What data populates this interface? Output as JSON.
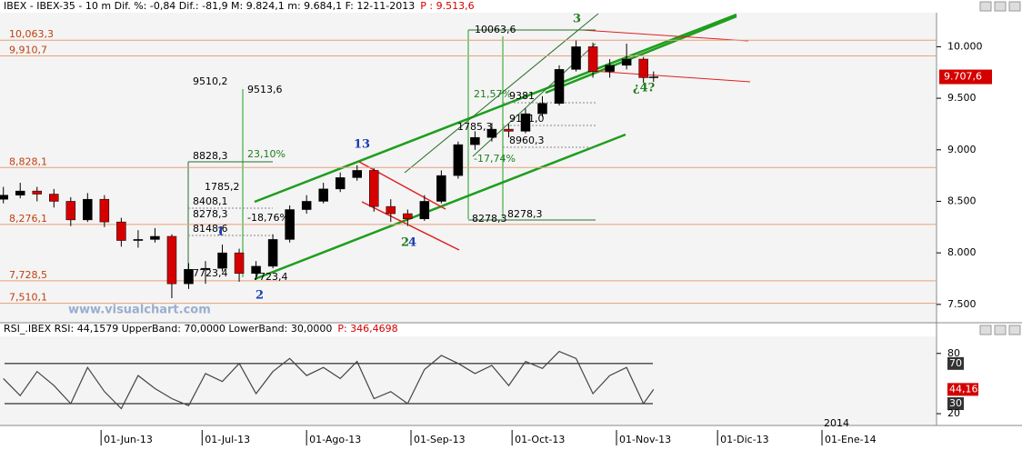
{
  "chart_data": [
    {
      "type": "candlestick",
      "title": "IBEX - IBEX-35 - 10 m Dif. %: -0,84 Dif.: -81,9 M: 9.824,1 m: 9.684,1 F: 12-11-2013",
      "title_extra": "P : 9.513,6",
      "x": [
        "2013-05-03",
        "2013-05-08",
        "2013-05-13",
        "2013-05-18",
        "2013-05-23",
        "2013-05-28",
        "2013-06-02",
        "2013-06-07",
        "2013-06-12",
        "2013-06-17",
        "2013-06-22",
        "2013-06-27",
        "2013-07-02",
        "2013-07-07",
        "2013-07-12",
        "2013-07-17",
        "2013-07-22",
        "2013-07-27",
        "2013-08-01",
        "2013-08-06",
        "2013-08-11",
        "2013-08-16",
        "2013-08-21",
        "2013-08-26",
        "2013-08-31",
        "2013-09-05",
        "2013-09-10",
        "2013-09-15",
        "2013-09-20",
        "2013-09-25",
        "2013-09-30",
        "2013-10-05",
        "2013-10-10",
        "2013-10-15",
        "2013-10-20",
        "2013-10-25",
        "2013-10-30",
        "2013-11-04",
        "2013-11-09",
        "2013-11-12"
      ],
      "open": [
        8520,
        8560,
        8600,
        8570,
        8500,
        8320,
        8520,
        8300,
        8120,
        8130,
        8160,
        7700,
        7840,
        7850,
        8000,
        7800,
        7870,
        8130,
        8420,
        8500,
        8620,
        8730,
        8800,
        8450,
        8380,
        8330,
        8500,
        8750,
        9050,
        9120,
        9200,
        9180,
        9350,
        9450,
        9780,
        10000,
        9760,
        9820,
        9880,
        9700
      ],
      "high": [
        8640,
        8680,
        8640,
        8620,
        8540,
        8580,
        8560,
        8340,
        8220,
        8240,
        8180,
        7900,
        7920,
        8080,
        8040,
        7920,
        8180,
        8460,
        8560,
        8680,
        8780,
        8850,
        8820,
        8520,
        8420,
        8560,
        8800,
        9080,
        9180,
        9260,
        9250,
        9400,
        9520,
        9820,
        10060,
        10040,
        9880,
        10030,
        9900,
        9760
      ],
      "low": [
        8480,
        8530,
        8500,
        8440,
        8260,
        8300,
        8250,
        8060,
        8050,
        8100,
        7560,
        7650,
        7700,
        7820,
        7720,
        7740,
        7850,
        8100,
        8380,
        8480,
        8590,
        8700,
        8400,
        8300,
        8260,
        8310,
        8480,
        8720,
        9000,
        9080,
        9120,
        9160,
        9320,
        9430,
        9760,
        9700,
        9700,
        9780,
        9650,
        9660
      ],
      "close": [
        8560,
        8600,
        8570,
        8500,
        8320,
        8520,
        8300,
        8120,
        8130,
        8160,
        7700,
        7840,
        7850,
        8000,
        7800,
        7870,
        8130,
        8420,
        8500,
        8620,
        8730,
        8800,
        8450,
        8380,
        8330,
        8500,
        8750,
        9050,
        9120,
        9200,
        9180,
        9350,
        9450,
        9780,
        10000,
        9760,
        9820,
        9880,
        9700,
        9708
      ],
      "up_color": "#000000",
      "down_color": "#d40000",
      "xlim": [
        "2013-05-02",
        "2014-02-04"
      ],
      "xticks": [
        {
          "value": "2013-06-01",
          "label": "01-Jun-13"
        },
        {
          "value": "2013-07-01",
          "label": "01-Jul-13"
        },
        {
          "value": "2013-08-01",
          "label": "01-Ago-13"
        },
        {
          "value": "2013-09-01",
          "label": "01-Sep-13"
        },
        {
          "value": "2013-10-01",
          "label": "01-Oct-13"
        },
        {
          "value": "2013-11-01",
          "label": "01-Nov-13"
        },
        {
          "value": "2013-12-01",
          "label": "01-Dic-13"
        },
        {
          "value": "2014-01-01",
          "label": "01-Ene-14"
        }
      ],
      "year_marker": "2014",
      "ylim": [
        7322,
        10330
      ],
      "yticks": [
        {
          "value": 7500,
          "label": "7.500"
        },
        {
          "value": 8000,
          "label": "8.000"
        },
        {
          "value": 8500,
          "label": "8.500"
        },
        {
          "value": 9000,
          "label": "9.000"
        },
        {
          "value": 9500,
          "label": "9.500"
        },
        {
          "value": 10000,
          "label": "10.000"
        }
      ],
      "levels": [
        {
          "value": 10063.3,
          "label": "10,063,3"
        },
        {
          "value": 9910.7,
          "label": "9,910,7"
        },
        {
          "value": 8828.1,
          "label": "8,828,1"
        },
        {
          "value": 8276.1,
          "label": "8,276,1"
        },
        {
          "value": 7728.5,
          "label": "7,728,5"
        },
        {
          "value": 7510.1,
          "label": "7,510,1"
        }
      ],
      "level_color": "#e8a07a",
      "last_price": {
        "value": 9707.6,
        "label": "9.707,6"
      },
      "annotations": [
        "10063,6",
        "9510,2",
        "9513,6",
        "8828,3",
        "23,10%",
        "1785,2",
        "8408,1",
        "8278,3",
        "-18,76%",
        "8148,6",
        "7723,4",
        "7723,4",
        "21,57%",
        "9381",
        "1785,3",
        "9171,0",
        "8960,3",
        "-17,74%",
        "8278,3",
        "8278,3",
        "3",
        "13",
        "1",
        "2",
        "2",
        "4",
        "¿4?",
        "www.visualchart.com"
      ]
    },
    {
      "type": "line",
      "title": "RSI_.IBEX RSI: 44,1579 UpperBand: 70,0000 LowerBand: 30,0000",
      "title_extra": "P: 346,4698",
      "x": [
        "2013-05-03",
        "2013-05-08",
        "2013-05-13",
        "2013-05-18",
        "2013-05-23",
        "2013-05-28",
        "2013-06-02",
        "2013-06-07",
        "2013-06-12",
        "2013-06-17",
        "2013-06-22",
        "2013-06-27",
        "2013-07-02",
        "2013-07-07",
        "2013-07-12",
        "2013-07-17",
        "2013-07-22",
        "2013-07-27",
        "2013-08-01",
        "2013-08-06",
        "2013-08-11",
        "2013-08-16",
        "2013-08-21",
        "2013-08-26",
        "2013-08-31",
        "2013-09-05",
        "2013-09-10",
        "2013-09-15",
        "2013-09-20",
        "2013-09-25",
        "2013-09-30",
        "2013-10-05",
        "2013-10-10",
        "2013-10-15",
        "2013-10-20",
        "2013-10-25",
        "2013-10-30",
        "2013-11-04",
        "2013-11-09",
        "2013-11-12"
      ],
      "values": [
        55,
        38,
        62,
        48,
        30,
        66,
        42,
        25,
        58,
        45,
        35,
        28,
        60,
        52,
        70,
        40,
        62,
        75,
        58,
        66,
        55,
        72,
        35,
        42,
        30,
        64,
        78,
        70,
        60,
        68,
        48,
        72,
        65,
        82,
        75,
        40,
        58,
        66,
        30,
        44.16
      ],
      "color": "#444444",
      "xlim": [
        "2013-05-02",
        "2014-02-04"
      ],
      "ylim": [
        11,
        97
      ],
      "yticks": [
        20,
        80
      ],
      "bands": [
        70,
        30
      ],
      "last_value": {
        "value": 44.16,
        "label": "44,16"
      }
    }
  ]
}
